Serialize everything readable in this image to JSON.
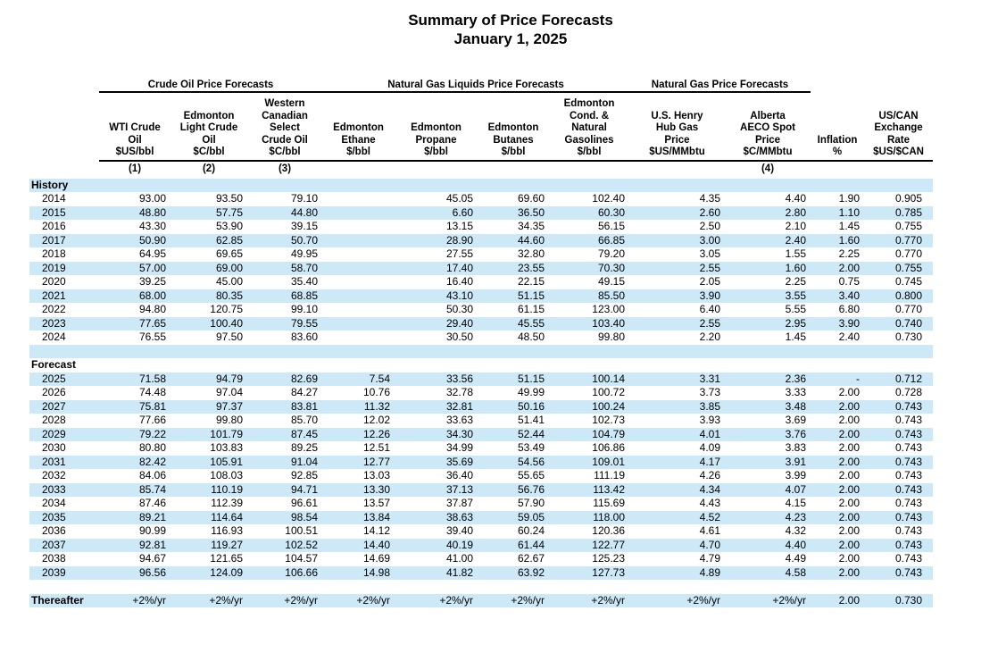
{
  "title": "Summary of Price Forecasts",
  "subtitle": "January 1, 2025",
  "colors": {
    "stripe": "#cde9f8"
  },
  "table": {
    "groups": [
      {
        "label": "Crude Oil Price Forecasts"
      },
      {
        "label": "Natural Gas Liquids Price Forecasts"
      },
      {
        "label": "Natural Gas Price Forecasts"
      }
    ],
    "columns": [
      {
        "header": "WTI Crude\nOil\n$US/bbl",
        "footnote": "(1)"
      },
      {
        "header": "Edmonton\nLight Crude\nOil\n$C/bbl",
        "footnote": "(2)"
      },
      {
        "header": "Western\nCanadian\nSelect\nCrude Oil\n$C/bbl",
        "footnote": "(3)"
      },
      {
        "header": "Edmonton\nEthane\n$/bbl",
        "footnote": ""
      },
      {
        "header": "Edmonton\nPropane\n$/bbl",
        "footnote": ""
      },
      {
        "header": "Edmonton\nButanes\n$/bbl",
        "footnote": ""
      },
      {
        "header": "Edmonton\nCond. &\nNatural\nGasolines\n$/bbl",
        "footnote": ""
      },
      {
        "header": "U.S. Henry\nHub Gas\nPrice\n$US/MMbtu",
        "footnote": ""
      },
      {
        "header": "Alberta\nAECO Spot\nPrice\n$C/MMbtu",
        "footnote": "(4)"
      },
      {
        "header": "Inflation\n%",
        "footnote": ""
      },
      {
        "header": "US/CAN\nExchange\nRate\n$US/$CAN",
        "footnote": ""
      }
    ],
    "sections": [
      {
        "label": "History",
        "rows": [
          {
            "year": "2014",
            "values": [
              "93.00",
              "93.50",
              "79.10",
              "",
              "45.05",
              "69.60",
              "102.40",
              "4.35",
              "4.40",
              "1.90",
              "0.905"
            ]
          },
          {
            "year": "2015",
            "values": [
              "48.80",
              "57.75",
              "44.80",
              "",
              "6.60",
              "36.50",
              "60.30",
              "2.60",
              "2.80",
              "1.10",
              "0.785"
            ]
          },
          {
            "year": "2016",
            "values": [
              "43.30",
              "53.90",
              "39.15",
              "",
              "13.15",
              "34.35",
              "56.15",
              "2.50",
              "2.10",
              "1.45",
              "0.755"
            ]
          },
          {
            "year": "2017",
            "values": [
              "50.90",
              "62.85",
              "50.70",
              "",
              "28.90",
              "44.60",
              "66.85",
              "3.00",
              "2.40",
              "1.60",
              "0.770"
            ]
          },
          {
            "year": "2018",
            "values": [
              "64.95",
              "69.65",
              "49.95",
              "",
              "27.55",
              "32.80",
              "79.20",
              "3.05",
              "1.55",
              "2.25",
              "0.770"
            ]
          },
          {
            "year": "2019",
            "values": [
              "57.00",
              "69.00",
              "58.70",
              "",
              "17.40",
              "23.55",
              "70.30",
              "2.55",
              "1.60",
              "2.00",
              "0.755"
            ]
          },
          {
            "year": "2020",
            "values": [
              "39.25",
              "45.00",
              "35.40",
              "",
              "16.40",
              "22.15",
              "49.15",
              "2.05",
              "2.25",
              "0.75",
              "0.745"
            ]
          },
          {
            "year": "2021",
            "values": [
              "68.00",
              "80.35",
              "68.85",
              "",
              "43.10",
              "51.15",
              "85.50",
              "3.90",
              "3.55",
              "3.40",
              "0.800"
            ]
          },
          {
            "year": "2022",
            "values": [
              "94.80",
              "120.75",
              "99.10",
              "",
              "50.30",
              "61.15",
              "123.00",
              "6.40",
              "5.55",
              "6.80",
              "0.770"
            ]
          },
          {
            "year": "2023",
            "values": [
              "77.65",
              "100.40",
              "79.55",
              "",
              "29.40",
              "45.55",
              "103.40",
              "2.55",
              "2.95",
              "3.90",
              "0.740"
            ]
          },
          {
            "year": "2024",
            "values": [
              "76.55",
              "97.50",
              "83.60",
              "",
              "30.50",
              "48.50",
              "99.80",
              "2.20",
              "1.45",
              "2.40",
              "0.730"
            ]
          }
        ]
      },
      {
        "label": "Forecast",
        "rows": [
          {
            "year": "2025",
            "values": [
              "71.58",
              "94.79",
              "82.69",
              "7.54",
              "33.56",
              "51.15",
              "100.14",
              "3.31",
              "2.36",
              "-",
              "0.712"
            ]
          },
          {
            "year": "2026",
            "values": [
              "74.48",
              "97.04",
              "84.27",
              "10.76",
              "32.78",
              "49.99",
              "100.72",
              "3.73",
              "3.33",
              "2.00",
              "0.728"
            ]
          },
          {
            "year": "2027",
            "values": [
              "75.81",
              "97.37",
              "83.81",
              "11.32",
              "32.81",
              "50.16",
              "100.24",
              "3.85",
              "3.48",
              "2.00",
              "0.743"
            ]
          },
          {
            "year": "2028",
            "values": [
              "77.66",
              "99.80",
              "85.70",
              "12.02",
              "33.63",
              "51.41",
              "102.73",
              "3.93",
              "3.69",
              "2.00",
              "0.743"
            ]
          },
          {
            "year": "2029",
            "values": [
              "79.22",
              "101.79",
              "87.45",
              "12.26",
              "34.30",
              "52.44",
              "104.79",
              "4.01",
              "3.76",
              "2.00",
              "0.743"
            ]
          },
          {
            "year": "2030",
            "values": [
              "80.80",
              "103.83",
              "89.25",
              "12.51",
              "34.99",
              "53.49",
              "106.86",
              "4.09",
              "3.83",
              "2.00",
              "0.743"
            ]
          },
          {
            "year": "2031",
            "values": [
              "82.42",
              "105.91",
              "91.04",
              "12.77",
              "35.69",
              "54.56",
              "109.01",
              "4.17",
              "3.91",
              "2.00",
              "0.743"
            ]
          },
          {
            "year": "2032",
            "values": [
              "84.06",
              "108.03",
              "92.85",
              "13.03",
              "36.40",
              "55.65",
              "111.19",
              "4.26",
              "3.99",
              "2.00",
              "0.743"
            ]
          },
          {
            "year": "2033",
            "values": [
              "85.74",
              "110.19",
              "94.71",
              "13.30",
              "37.13",
              "56.76",
              "113.42",
              "4.34",
              "4.07",
              "2.00",
              "0.743"
            ]
          },
          {
            "year": "2034",
            "values": [
              "87.46",
              "112.39",
              "96.61",
              "13.57",
              "37.87",
              "57.90",
              "115.69",
              "4.43",
              "4.15",
              "2.00",
              "0.743"
            ]
          },
          {
            "year": "2035",
            "values": [
              "89.21",
              "114.64",
              "98.54",
              "13.84",
              "38.63",
              "59.05",
              "118.00",
              "4.52",
              "4.23",
              "2.00",
              "0.743"
            ]
          },
          {
            "year": "2036",
            "values": [
              "90.99",
              "116.93",
              "100.51",
              "14.12",
              "39.40",
              "60.24",
              "120.36",
              "4.61",
              "4.32",
              "2.00",
              "0.743"
            ]
          },
          {
            "year": "2037",
            "values": [
              "92.81",
              "119.27",
              "102.52",
              "14.40",
              "40.19",
              "61.44",
              "122.77",
              "4.70",
              "4.40",
              "2.00",
              "0.743"
            ]
          },
          {
            "year": "2038",
            "values": [
              "94.67",
              "121.65",
              "104.57",
              "14.69",
              "41.00",
              "62.67",
              "125.23",
              "4.79",
              "4.49",
              "2.00",
              "0.743"
            ]
          },
          {
            "year": "2039",
            "values": [
              "96.56",
              "124.09",
              "106.66",
              "14.98",
              "41.82",
              "63.92",
              "127.73",
              "4.89",
              "4.58",
              "2.00",
              "0.743"
            ]
          }
        ]
      }
    ],
    "thereafter": {
      "label": "Thereafter",
      "values": [
        "+2%/yr",
        "+2%/yr",
        "+2%/yr",
        "+2%/yr",
        "+2%/yr",
        "+2%/yr",
        "+2%/yr",
        "+2%/yr",
        "+2%/yr",
        "2.00",
        "0.730"
      ]
    }
  }
}
